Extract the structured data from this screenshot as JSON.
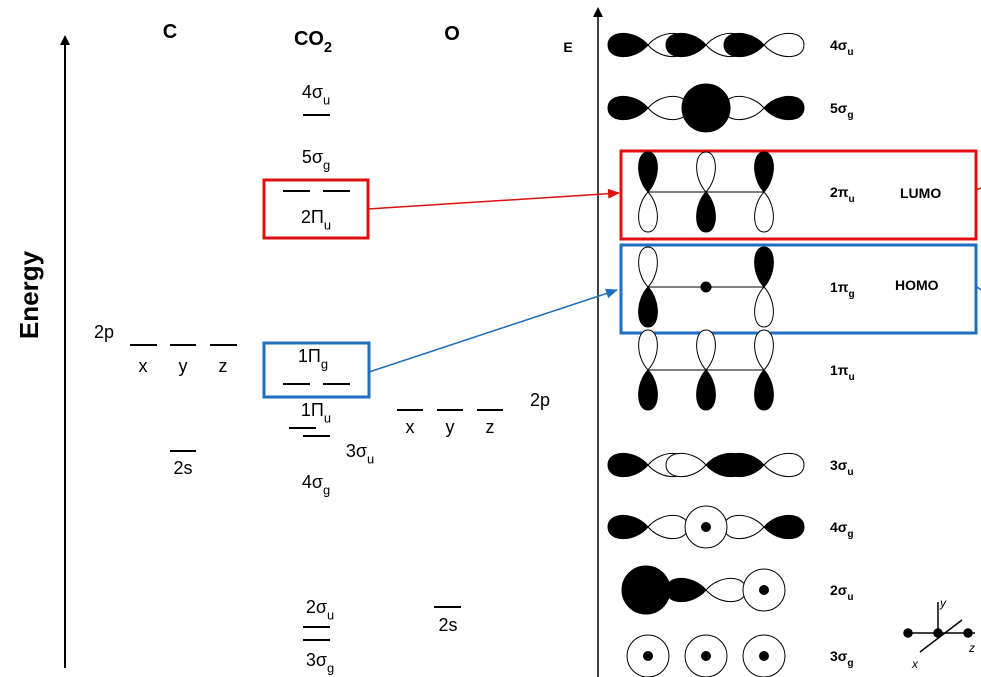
{
  "left_panel": {
    "axis_label": "Energy",
    "columns": {
      "c": "C",
      "co2": {
        "main": "CO",
        "sub": "2"
      },
      "o": "O"
    },
    "c_atom": {
      "p_label": "2p",
      "p_orbitals": [
        "x",
        "y",
        "z"
      ],
      "s_label": "2s"
    },
    "o_atom": {
      "p_label": "2p",
      "p_orbitals": [
        "x",
        "y",
        "z"
      ],
      "s_label": "2s"
    },
    "co2_levels": [
      {
        "main": "4σ",
        "sub": "u"
      },
      {
        "main": "5σ",
        "sub": "g"
      },
      {
        "main": "2Π",
        "sub": "u"
      },
      {
        "main": "1Π",
        "sub": "g"
      },
      {
        "main": "1Π",
        "sub": "u"
      },
      {
        "main": "3σ",
        "sub": "u"
      },
      {
        "main": "4σ",
        "sub": "g"
      },
      {
        "main": "2σ",
        "sub": "u"
      },
      {
        "main": "3σ",
        "sub": "g"
      }
    ]
  },
  "right_panel": {
    "axis_label": "E",
    "orbitals": [
      {
        "main": "4σ",
        "sub": "u"
      },
      {
        "main": "5σ",
        "sub": "g"
      },
      {
        "main": "2π",
        "sub": "u"
      },
      {
        "main": "1π",
        "sub": "g"
      },
      {
        "main": "1π",
        "sub": "u"
      },
      {
        "main": "3σ",
        "sub": "u"
      },
      {
        "main": "4σ",
        "sub": "g"
      },
      {
        "main": "2σ",
        "sub": "u"
      },
      {
        "main": "3σ",
        "sub": "g"
      }
    ],
    "lumo": "LUMO",
    "homo": "HOMO",
    "axes": [
      "x",
      "y",
      "z"
    ]
  }
}
